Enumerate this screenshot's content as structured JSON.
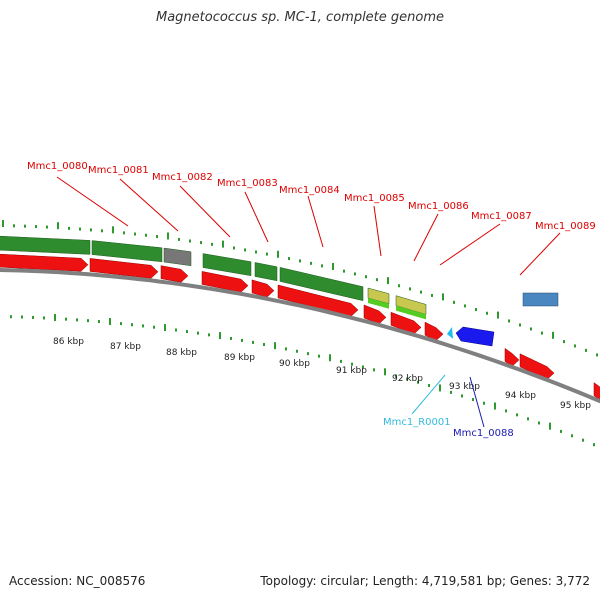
{
  "title": "Magnetococcus sp. MC-1, complete genome",
  "footer": {
    "accession": "Accession: NC_008576",
    "summary": "Topology: circular; Length: 4,719,581 bp; Genes: 3,772"
  },
  "colors": {
    "forward_cds": "#ee1111",
    "reverse_cds": "#2e8b2e",
    "gray_feature": "#777777",
    "yellow_feature": "#c8c850",
    "blue_feature": "#1a1aee",
    "steelblue_feature": "#4a86c0",
    "rna": "#22bbee",
    "tick": "#2e9a2e",
    "backbone": "#808080",
    "label_red": "#dd0000",
    "label_blue": "#1a1ab0",
    "label_cyan": "#33bbdd"
  },
  "scale_labels": [
    "86 kbp",
    "87 kbp",
    "88 kbp",
    "89 kbp",
    "90 kbp",
    "91 kbp",
    "92 kbp",
    "93 kbp",
    "94 kbp",
    "95 kbp"
  ],
  "gene_labels": [
    {
      "text": "Mmc1_0080",
      "color": "label_red"
    },
    {
      "text": "Mmc1_0081",
      "color": "label_red"
    },
    {
      "text": "Mmc1_0082",
      "color": "label_red"
    },
    {
      "text": "Mmc1_0083",
      "color": "label_red"
    },
    {
      "text": "Mmc1_0084",
      "color": "label_red"
    },
    {
      "text": "Mmc1_0085",
      "color": "label_red"
    },
    {
      "text": "Mmc1_0086",
      "color": "label_red"
    },
    {
      "text": "Mmc1_0087",
      "color": "label_red"
    },
    {
      "text": "Mmc1_0089",
      "color": "label_red"
    },
    {
      "text": "Mmc1_R0001",
      "color": "label_cyan"
    },
    {
      "text": "Mmc1_0088",
      "color": "label_blue"
    }
  ]
}
